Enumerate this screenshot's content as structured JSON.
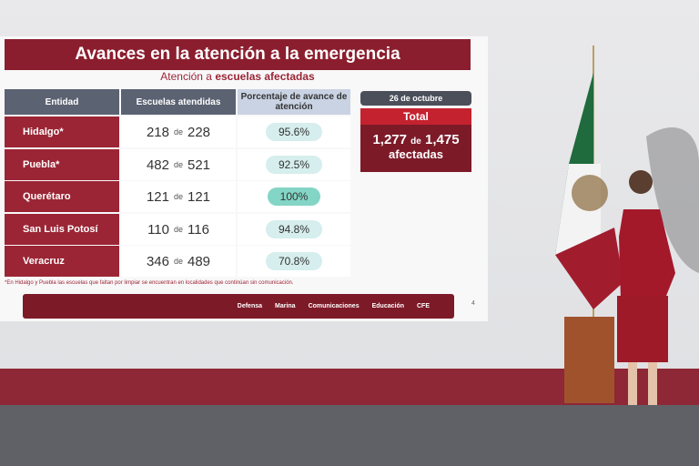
{
  "slide": {
    "title": "Avances en la atención a la emergencia",
    "subtitle_plain": "Atención a",
    "subtitle_bold": "escuelas afectadas",
    "table": {
      "headers": [
        "Entidad",
        "Escuelas atendidas",
        "Porcentaje de avance de atención"
      ],
      "rows": [
        {
          "entity": "Hidalgo*",
          "attended": "218",
          "of": "de",
          "total": "228",
          "percent": "95.6%"
        },
        {
          "entity": "Puebla*",
          "attended": "482",
          "of": "de",
          "total": "521",
          "percent": "92.5%"
        },
        {
          "entity": "Querétaro",
          "attended": "121",
          "of": "de",
          "total": "121",
          "percent": "100%"
        },
        {
          "entity": "San Luis Potosí",
          "attended": "110",
          "of": "de",
          "total": "116",
          "percent": "94.8%"
        },
        {
          "entity": "Veracruz",
          "attended": "346",
          "of": "de",
          "total": "489",
          "percent": "70.8%"
        }
      ]
    },
    "date": "26 de octubre",
    "summary": {
      "label": "Total",
      "attended": "1,277",
      "of": "de",
      "total": "1,475",
      "caption": "afectadas"
    },
    "footnote": "*En Hidalgo y Puebla las escuelas que faltan por limpiar se encuentran en localidades que continúan sin comunicación.",
    "logos": [
      "Defensa",
      "Marina",
      "Comunicaciones",
      "Educación",
      "CFE"
    ],
    "page": "4"
  }
}
